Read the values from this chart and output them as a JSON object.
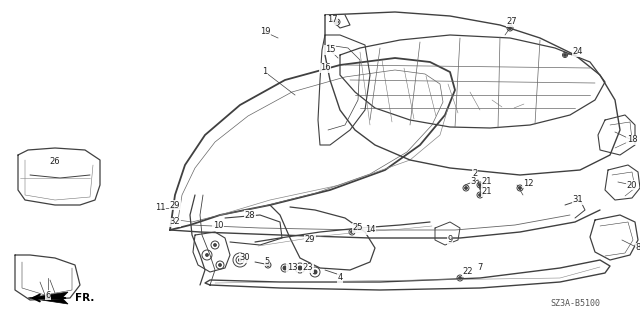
{
  "diagram_code": "SZ3A-B5100",
  "fr_label": "FR.",
  "background_color": "#ffffff",
  "line_color": "#404040",
  "text_color": "#222222",
  "figsize": [
    6.4,
    3.19
  ],
  "dpi": 100
}
